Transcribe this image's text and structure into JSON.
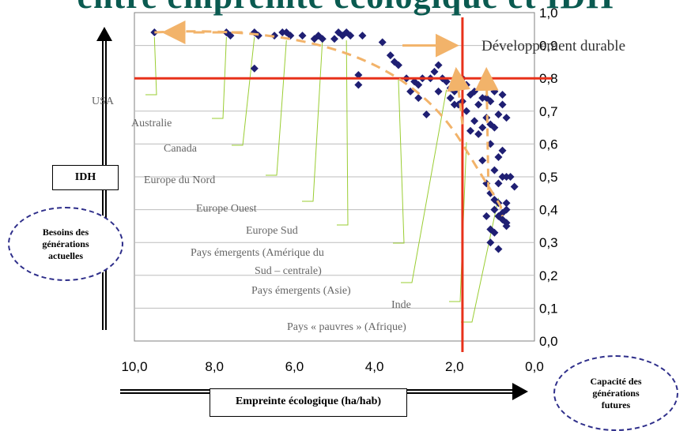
{
  "title": "entre empreinte écologique et IDH",
  "idh_label": "IDH",
  "xaxis_box_label": "Empreinte écologique (ha/hab)",
  "left_bubble": "Besoins des générations actuelles",
  "right_bubble": "Capacité des générations futures",
  "dev_durable_label": "Développement durable",
  "chart_data": {
    "type": "scatter",
    "xlim": [
      10,
      0
    ],
    "ylim": [
      0,
      1
    ],
    "x_ticks": [
      "10,0",
      "8,0",
      "6,0",
      "4,0",
      "2,0",
      "0,0"
    ],
    "y_ticks": [
      "0,0",
      "0,1",
      "0,2",
      "0,3",
      "0,4",
      "0,5",
      "0,6",
      "0,7",
      "0,8",
      "0,9",
      "1,0"
    ],
    "grid": true,
    "reference_lines": {
      "x": 1.8,
      "y": 0.8
    },
    "points": [
      [
        9.5,
        0.94
      ],
      [
        7.7,
        0.94
      ],
      [
        7.6,
        0.93
      ],
      [
        7.0,
        0.94
      ],
      [
        6.9,
        0.93
      ],
      [
        6.5,
        0.93
      ],
      [
        6.3,
        0.94
      ],
      [
        6.2,
        0.94
      ],
      [
        6.1,
        0.93
      ],
      [
        5.8,
        0.93
      ],
      [
        5.5,
        0.92
      ],
      [
        5.4,
        0.93
      ],
      [
        5.3,
        0.92
      ],
      [
        5.0,
        0.92
      ],
      [
        4.9,
        0.94
      ],
      [
        4.8,
        0.93
      ],
      [
        4.7,
        0.94
      ],
      [
        4.6,
        0.93
      ],
      [
        4.3,
        0.93
      ],
      [
        3.8,
        0.91
      ],
      [
        3.6,
        0.87
      ],
      [
        7.0,
        0.83
      ],
      [
        4.4,
        0.81
      ],
      [
        4.4,
        0.78
      ],
      [
        3.5,
        0.85
      ],
      [
        3.4,
        0.84
      ],
      [
        3.2,
        0.8
      ],
      [
        3.0,
        0.79
      ],
      [
        2.9,
        0.78
      ],
      [
        2.8,
        0.8
      ],
      [
        2.6,
        0.8
      ],
      [
        2.5,
        0.82
      ],
      [
        2.4,
        0.84
      ],
      [
        2.3,
        0.8
      ],
      [
        2.2,
        0.79
      ],
      [
        2.1,
        0.77
      ],
      [
        2.0,
        0.76
      ],
      [
        1.9,
        0.77
      ],
      [
        1.8,
        0.8
      ],
      [
        1.7,
        0.78
      ],
      [
        1.6,
        0.75
      ],
      [
        1.5,
        0.76
      ],
      [
        1.4,
        0.72
      ],
      [
        1.3,
        0.74
      ],
      [
        1.2,
        0.74
      ],
      [
        1.1,
        0.73
      ],
      [
        1.0,
        0.76
      ],
      [
        3.1,
        0.76
      ],
      [
        2.9,
        0.74
      ],
      [
        2.7,
        0.69
      ],
      [
        2.4,
        0.76
      ],
      [
        2.1,
        0.74
      ],
      [
        2.0,
        0.72
      ],
      [
        1.9,
        0.72
      ],
      [
        1.8,
        0.73
      ],
      [
        1.7,
        0.7
      ],
      [
        1.5,
        0.67
      ],
      [
        1.4,
        0.63
      ],
      [
        1.3,
        0.65
      ],
      [
        1.2,
        0.68
      ],
      [
        1.1,
        0.66
      ],
      [
        1.0,
        0.65
      ],
      [
        0.9,
        0.69
      ],
      [
        0.8,
        0.72
      ],
      [
        0.8,
        0.75
      ],
      [
        0.7,
        0.68
      ],
      [
        1.6,
        0.64
      ],
      [
        1.3,
        0.55
      ],
      [
        1.1,
        0.6
      ],
      [
        1.0,
        0.52
      ],
      [
        0.9,
        0.56
      ],
      [
        0.8,
        0.58
      ],
      [
        0.9,
        0.48
      ],
      [
        0.8,
        0.5
      ],
      [
        0.7,
        0.5
      ],
      [
        0.6,
        0.5
      ],
      [
        0.5,
        0.47
      ],
      [
        1.2,
        0.48
      ],
      [
        1.1,
        0.45
      ],
      [
        1.0,
        0.43
      ],
      [
        0.9,
        0.42
      ],
      [
        0.8,
        0.39
      ],
      [
        0.7,
        0.4
      ],
      [
        0.7,
        0.36
      ],
      [
        0.8,
        0.37
      ],
      [
        0.7,
        0.35
      ],
      [
        0.9,
        0.38
      ],
      [
        1.2,
        0.38
      ],
      [
        1.0,
        0.33
      ],
      [
        1.1,
        0.34
      ],
      [
        1.1,
        0.3
      ],
      [
        0.9,
        0.28
      ],
      [
        0.7,
        0.42
      ],
      [
        1.0,
        0.4
      ]
    ],
    "labels": [
      {
        "text": "USA",
        "x": 9.5,
        "y": 0.94
      },
      {
        "text": "Australie",
        "x": 7.7,
        "y": 0.94
      },
      {
        "text": "Canada",
        "x": 7.0,
        "y": 0.94
      },
      {
        "text": "Europe du Nord",
        "x": 6.2,
        "y": 0.93
      },
      {
        "text": "Europe Ouest",
        "x": 5.3,
        "y": 0.93
      },
      {
        "text": "Europe Sud",
        "x": 4.7,
        "y": 0.93
      },
      {
        "text": "Pays émergents (Amérique du Sud – centrale)",
        "x": 3.4,
        "y": 0.81
      },
      {
        "text": "Pays émergents (Asie)",
        "x": 2.2,
        "y": 0.78
      },
      {
        "text": "Inde",
        "x": 1.7,
        "y": 0.62
      },
      {
        "text": "Pays « pauvres » (Afrique)",
        "x": 0.9,
        "y": 0.45
      }
    ]
  }
}
